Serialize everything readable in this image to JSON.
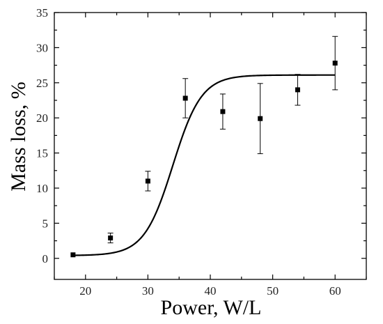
{
  "chart_data": {
    "type": "scatter",
    "xlabel": "Power, W/L",
    "ylabel": "Mass loss, %",
    "xlim": [
      15,
      65
    ],
    "ylim": [
      -3,
      35
    ],
    "x_ticks": [
      20,
      30,
      40,
      50,
      60
    ],
    "y_ticks": [
      0,
      5,
      10,
      15,
      20,
      25,
      30,
      35
    ],
    "grid": false,
    "legend": "none",
    "series": [
      {
        "marker": "square",
        "x": [
          18,
          24,
          30,
          36,
          42,
          48,
          54,
          60
        ],
        "y": [
          0.5,
          2.9,
          11.0,
          22.8,
          20.9,
          19.9,
          24.0,
          27.8
        ],
        "error": [
          0.0,
          0.7,
          1.4,
          2.8,
          2.5,
          5.0,
          2.2,
          3.8
        ]
      },
      {
        "type": "line",
        "fit": "sigmoid",
        "x_range": [
          18,
          60
        ],
        "params": {
          "bottom": 0.4,
          "top": 26.1,
          "x0": 34.0,
          "width": 2.3
        }
      }
    ],
    "colors": {
      "axis": "#000000",
      "marker": "#000000",
      "curve": "#000000"
    }
  }
}
